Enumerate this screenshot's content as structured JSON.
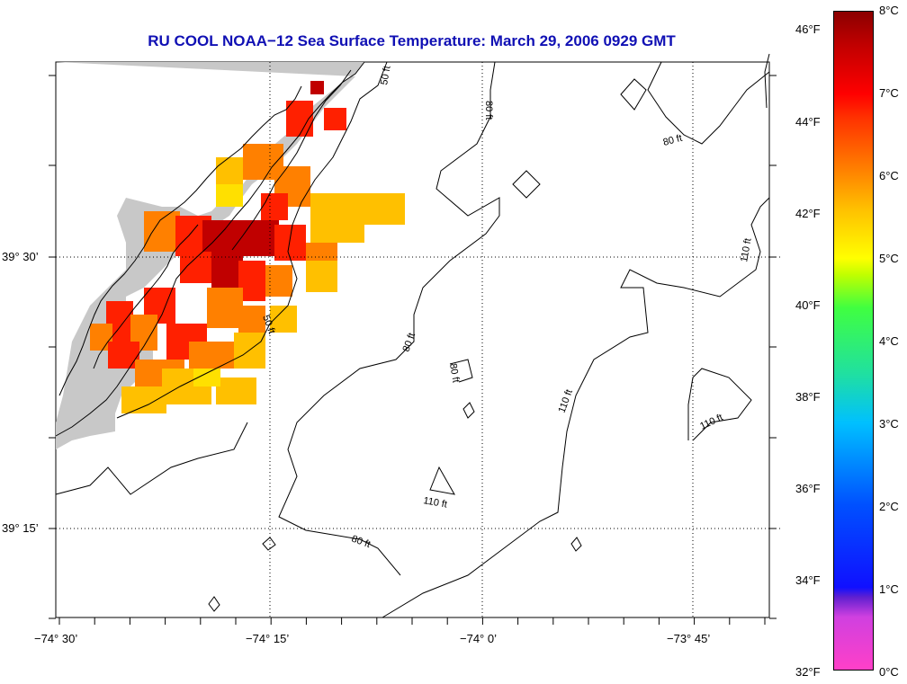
{
  "title": "RU COOL  NOAA−12  Sea Surface Temperature:  March 29, 2006 0929 GMT",
  "latitude_labels": [
    "39° 30’",
    "39° 15’"
  ],
  "longitude_labels": [
    "−74° 30’",
    "−74° 15’",
    "−74° 0’",
    "−73° 45’"
  ],
  "contour_labels": [
    "50 ft",
    "80 ft",
    "80 ft",
    "110 ft",
    "50 ft",
    "80 ft",
    "80 ft",
    "110 ft",
    "110 ft",
    "110 ft",
    "80 ft"
  ],
  "colorbar": {
    "fahrenheit_labels": [
      "46°F",
      "44°F",
      "42°F",
      "40°F",
      "38°F",
      "36°F",
      "34°F",
      "32°F"
    ],
    "celsius_labels": [
      "8°C",
      "7°C",
      "6°C",
      "5°C",
      "4°C",
      "3°C",
      "2°C",
      "1°C",
      "0°C"
    ]
  },
  "colors": {
    "title": "#1010b4",
    "land": "#c8c8c8",
    "warmest": "#c00000",
    "warm": "#ff2000",
    "mid_warm": "#ff8000",
    "mild": "#ffc000",
    "cool": "#ffe000"
  }
}
